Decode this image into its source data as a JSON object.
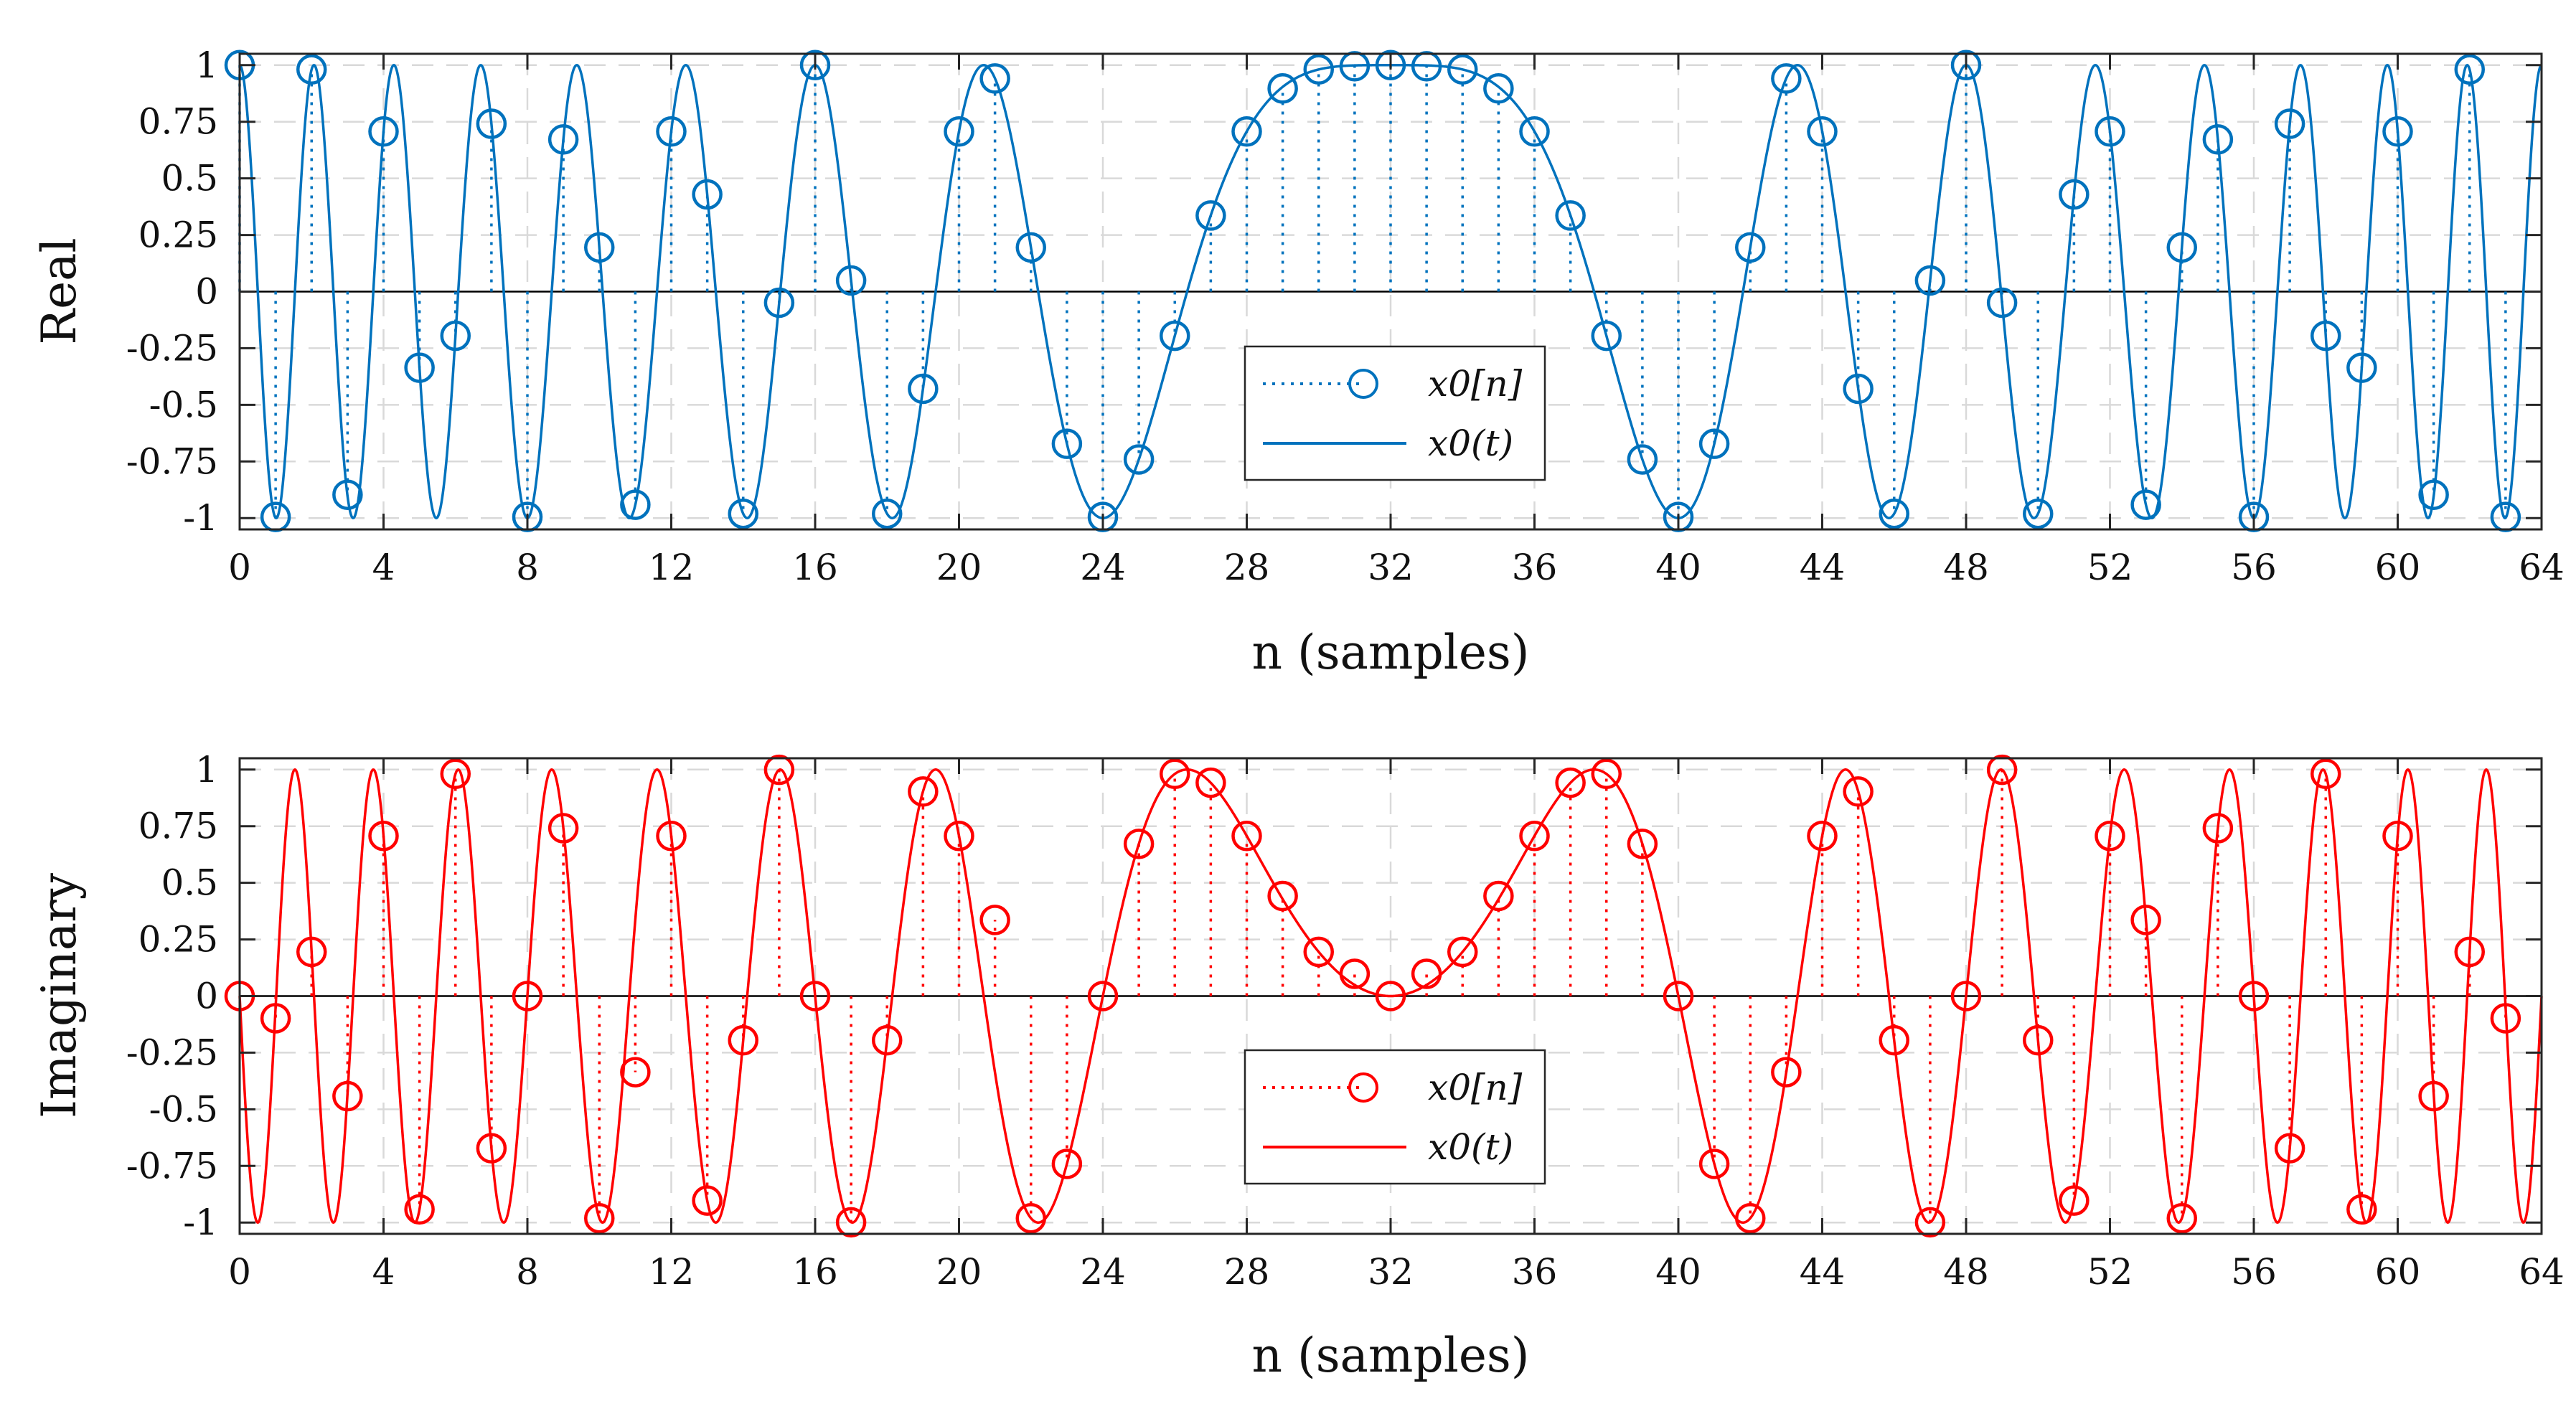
{
  "chart_data": [
    {
      "type": "line",
      "name": "real-part",
      "xlabel": "n (samples)",
      "ylabel": "Real",
      "xlim": [
        0,
        64
      ],
      "ylim": [
        -1.05,
        1.05
      ],
      "grid": true,
      "xticks": [
        0,
        4,
        8,
        12,
        16,
        20,
        24,
        28,
        32,
        36,
        40,
        44,
        48,
        52,
        56,
        60,
        64
      ],
      "xtick_labels": [
        "0",
        "4",
        "8",
        "12",
        "16",
        "20",
        "24",
        "28",
        "32",
        "36",
        "40",
        "44",
        "48",
        "52",
        "56",
        "60",
        "64"
      ],
      "yticks": [
        1,
        0.75,
        0.5,
        0.25,
        0,
        -0.25,
        -0.5,
        -0.75,
        -1
      ],
      "ytick_labels": [
        "1",
        "0.75",
        "0.5",
        "0.25",
        "0",
        "-0.25",
        "-0.5",
        "-0.75",
        "-1"
      ],
      "color": "#0072BD",
      "legend": {
        "position": "center",
        "entries": [
          "x0[n]",
          "x0(t)"
        ]
      },
      "series": [
        {
          "name": "x0[n]",
          "style": "stem",
          "n": [
            0,
            1,
            2,
            3,
            4,
            5,
            6,
            7,
            8,
            9,
            10,
            11,
            12,
            13,
            14,
            15,
            16,
            17,
            18,
            19,
            20,
            21,
            22,
            23,
            24,
            25,
            26,
            27,
            28,
            29,
            30,
            31,
            32,
            33,
            34,
            35,
            36,
            37,
            38,
            39,
            40,
            41,
            42,
            43,
            44,
            45,
            46,
            47,
            48,
            49,
            50,
            51,
            52,
            53,
            54,
            55,
            56,
            57,
            58,
            59,
            60,
            61,
            62,
            63
          ],
          "values": [
            1,
            -0.995,
            0.981,
            -0.897,
            0.707,
            -0.336,
            -0.195,
            0.741,
            -0.995,
            0.672,
            0.195,
            -0.941,
            0.707,
            0.429,
            -0.981,
            -0.049,
            1,
            0.049,
            -0.981,
            -0.429,
            0.707,
            0.941,
            0.195,
            -0.672,
            -0.995,
            -0.741,
            -0.195,
            0.336,
            0.707,
            0.897,
            0.981,
            0.995,
            1,
            0.995,
            0.981,
            0.897,
            0.707,
            0.336,
            -0.195,
            -0.741,
            -0.995,
            -0.672,
            0.195,
            0.941,
            0.707,
            -0.429,
            -0.981,
            0.049,
            1,
            -0.049,
            -0.981,
            0.429,
            0.707,
            -0.941,
            0.195,
            0.672,
            -0.995,
            0.741,
            -0.195,
            -0.336,
            0.707,
            -0.897,
            0.981,
            -0.995
          ]
        },
        {
          "name": "x0(t)",
          "style": "line",
          "expression": "cos(pi*(t-32)^2/64)",
          "t_range": [
            0,
            64
          ]
        }
      ]
    },
    {
      "type": "line",
      "name": "imaginary-part",
      "xlabel": "n (samples)",
      "ylabel": "Imaginary",
      "xlim": [
        0,
        64
      ],
      "ylim": [
        -1.05,
        1.05
      ],
      "grid": true,
      "xticks": [
        0,
        4,
        8,
        12,
        16,
        20,
        24,
        28,
        32,
        36,
        40,
        44,
        48,
        52,
        56,
        60,
        64
      ],
      "xtick_labels": [
        "0",
        "4",
        "8",
        "12",
        "16",
        "20",
        "24",
        "28",
        "32",
        "36",
        "40",
        "44",
        "48",
        "52",
        "56",
        "60",
        "64"
      ],
      "yticks": [
        1,
        0.75,
        0.5,
        0.25,
        0,
        -0.25,
        -0.5,
        -0.75,
        -1
      ],
      "ytick_labels": [
        "1",
        "0.75",
        "0.5",
        "0.25",
        "0",
        "-0.25",
        "-0.5",
        "-0.75",
        "-1"
      ],
      "color": "#FF0000",
      "legend": {
        "position": "center",
        "entries": [
          "x0[n]",
          "x0(t)"
        ]
      },
      "series": [
        {
          "name": "x0[n]",
          "style": "stem",
          "n": [
            0,
            1,
            2,
            3,
            4,
            5,
            6,
            7,
            8,
            9,
            10,
            11,
            12,
            13,
            14,
            15,
            16,
            17,
            18,
            19,
            20,
            21,
            22,
            23,
            24,
            25,
            26,
            27,
            28,
            29,
            30,
            31,
            32,
            33,
            34,
            35,
            36,
            37,
            38,
            39,
            40,
            41,
            42,
            43,
            44,
            45,
            46,
            47,
            48,
            49,
            50,
            51,
            52,
            53,
            54,
            55,
            56,
            57,
            58,
            59,
            60,
            61,
            62,
            63
          ],
          "values": [
            0,
            -0.098,
            0.195,
            -0.442,
            0.707,
            -0.942,
            0.981,
            -0.672,
            0,
            0.741,
            -0.981,
            -0.336,
            0.707,
            -0.903,
            -0.195,
            0.999,
            0,
            -0.999,
            -0.195,
            0.903,
            0.707,
            0.336,
            -0.981,
            -0.741,
            0,
            0.672,
            0.981,
            0.942,
            0.707,
            0.442,
            0.195,
            0.098,
            0,
            0.098,
            0.195,
            0.442,
            0.707,
            0.942,
            0.981,
            0.672,
            0,
            -0.741,
            -0.981,
            -0.336,
            0.707,
            0.903,
            -0.195,
            -0.999,
            0,
            0.999,
            -0.195,
            -0.903,
            0.707,
            0.336,
            -0.981,
            0.741,
            0,
            -0.672,
            0.981,
            -0.942,
            0.707,
            -0.442,
            0.195,
            -0.098
          ]
        },
        {
          "name": "x0(t)",
          "style": "line",
          "expression": "sin(pi*(t-32)^2/64)",
          "t_range": [
            0,
            64
          ]
        }
      ]
    }
  ]
}
